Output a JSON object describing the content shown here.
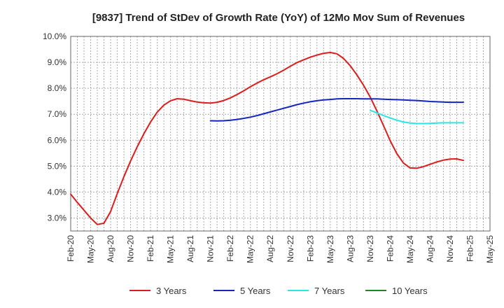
{
  "chart_data": {
    "type": "line",
    "title": "[9837]  Trend of StDev of Growth Rate (YoY) of 12Mo Mov Sum of Revenues",
    "xlabel": "",
    "ylabel": "",
    "ylim": [
      2.5,
      10.0
    ],
    "yticks": [
      3.0,
      4.0,
      5.0,
      6.0,
      7.0,
      8.0,
      9.0,
      10.0
    ],
    "ytick_labels": [
      "3.0%",
      "4.0%",
      "5.0%",
      "6.0%",
      "7.0%",
      "8.0%",
      "9.0%",
      "10.0%"
    ],
    "xtick_labels": [
      "Feb-20",
      "May-20",
      "Aug-20",
      "Nov-20",
      "Feb-21",
      "May-21",
      "Aug-21",
      "Nov-21",
      "Feb-22",
      "May-22",
      "Aug-22",
      "Nov-22",
      "Feb-23",
      "May-23",
      "Aug-23",
      "Nov-23",
      "Feb-24",
      "May-24",
      "Aug-24",
      "Nov-24",
      "Feb-25",
      "May-25"
    ],
    "x_count_months": 63,
    "grid": true,
    "legend_position": "bottom",
    "series": [
      {
        "name": "3 Years",
        "color": "#dd1c1c",
        "start_month_index": 0,
        "values": [
          3.92,
          3.6,
          3.3,
          3.0,
          2.75,
          2.8,
          3.25,
          3.95,
          4.6,
          5.2,
          5.75,
          6.25,
          6.7,
          7.08,
          7.35,
          7.52,
          7.6,
          7.58,
          7.52,
          7.47,
          7.44,
          7.43,
          7.46,
          7.53,
          7.63,
          7.76,
          7.9,
          8.06,
          8.2,
          8.33,
          8.44,
          8.56,
          8.7,
          8.85,
          8.99,
          9.1,
          9.2,
          9.28,
          9.35,
          9.38,
          9.33,
          9.15,
          8.87,
          8.52,
          8.12,
          7.66,
          7.13,
          6.56,
          5.98,
          5.48,
          5.12,
          4.93,
          4.92,
          4.98,
          5.07,
          5.16,
          5.23,
          5.27,
          5.28,
          5.22
        ]
      },
      {
        "name": "5 Years",
        "color": "#1426c0",
        "start_month_index": 21,
        "values": [
          6.75,
          6.74,
          6.75,
          6.77,
          6.8,
          6.84,
          6.89,
          6.95,
          7.02,
          7.09,
          7.16,
          7.23,
          7.3,
          7.37,
          7.43,
          7.48,
          7.52,
          7.55,
          7.57,
          7.59,
          7.6,
          7.6,
          7.6,
          7.59,
          7.59,
          7.59,
          7.58,
          7.57,
          7.56,
          7.55,
          7.54,
          7.53,
          7.51,
          7.49,
          7.48,
          7.47,
          7.46,
          7.46,
          7.46
        ]
      },
      {
        "name": "7 Years",
        "color": "#28e6e6",
        "start_month_index": 45,
        "values": [
          7.15,
          7.05,
          6.95,
          6.86,
          6.77,
          6.7,
          6.66,
          6.64,
          6.64,
          6.65,
          6.66,
          6.67,
          6.67,
          6.67,
          6.67
        ]
      },
      {
        "name": "10 Years",
        "color": "#1f8a1f",
        "start_month_index": 0,
        "values": []
      }
    ]
  }
}
